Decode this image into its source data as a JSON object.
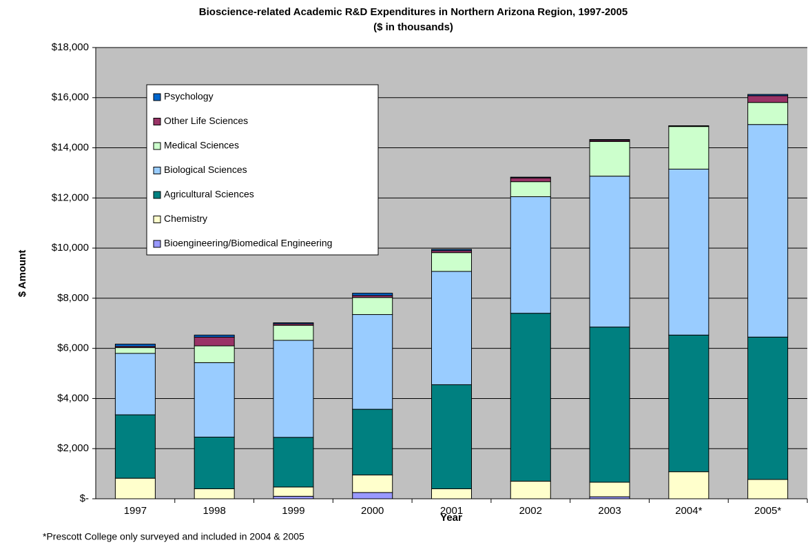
{
  "chart_data": {
    "type": "stacked_bar",
    "title": "Bioscience-related Academic R&D Expenditures in Northern Arizona Region, 1997-2005",
    "subtitle": "($ in thousands)",
    "x_label": "Year",
    "y_label": "$ Amount",
    "footnote": "*Prescott College only surveyed and included in 2004 & 2005",
    "categories": [
      "1997",
      "1998",
      "1999",
      "2000",
      "2001",
      "2002",
      "2003",
      "2004*",
      "2005*"
    ],
    "series": [
      {
        "name": "Bioengineering/Biomedical Engineering",
        "color": "#9999ff",
        "values": [
          0,
          0,
          100,
          250,
          0,
          0,
          80,
          0,
          0
        ]
      },
      {
        "name": "Chemistry",
        "color": "#ffffcc",
        "values": [
          820,
          400,
          370,
          700,
          400,
          700,
          580,
          1080,
          770
        ]
      },
      {
        "name": "Agricultural Sciences",
        "color": "#008080",
        "values": [
          2530,
          2060,
          1980,
          2620,
          4150,
          6700,
          6190,
          5450,
          5680
        ]
      },
      {
        "name": "Biological Sciences",
        "color": "#99ccff",
        "values": [
          2450,
          2970,
          3870,
          3780,
          4520,
          4650,
          6020,
          6620,
          8480
        ]
      },
      {
        "name": "Medical Sciences",
        "color": "#ccffcc",
        "values": [
          230,
          670,
          600,
          680,
          750,
          600,
          1380,
          1700,
          880
        ]
      },
      {
        "name": "Other Life Sciences",
        "color": "#993366",
        "values": [
          50,
          350,
          60,
          80,
          80,
          150,
          50,
          20,
          270
        ]
      },
      {
        "name": "Psychology",
        "color": "#0066cc",
        "values": [
          90,
          80,
          40,
          90,
          50,
          30,
          30,
          10,
          50
        ]
      }
    ],
    "ylim": [
      0,
      18000
    ],
    "yticks": [
      {
        "value": 0,
        "label": "$-"
      },
      {
        "value": 2000,
        "label": "$2,000"
      },
      {
        "value": 4000,
        "label": "$4,000"
      },
      {
        "value": 6000,
        "label": "$6,000"
      },
      {
        "value": 8000,
        "label": "$8,000"
      },
      {
        "value": 10000,
        "label": "$10,000"
      },
      {
        "value": 12000,
        "label": "$12,000"
      },
      {
        "value": 14000,
        "label": "$14,000"
      },
      {
        "value": 16000,
        "label": "$16,000"
      },
      {
        "value": 18000,
        "label": "$18,000"
      }
    ],
    "grid": true,
    "legend": "upper left"
  }
}
